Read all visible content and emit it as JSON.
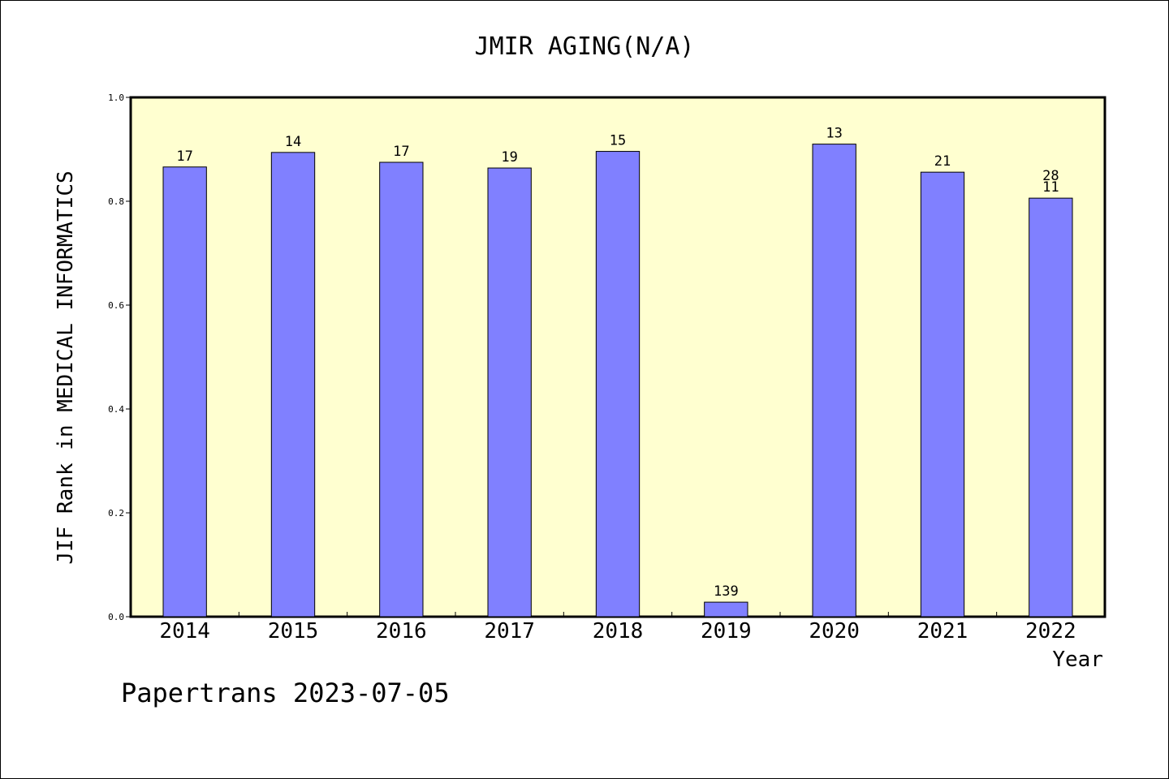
{
  "chart_data": {
    "type": "bar",
    "title": "JMIR AGING(N/A)",
    "xlabel": "Year",
    "ylabel": "JIF Rank in MEDICAL INFORMATICS",
    "ylim": [
      0,
      1.0
    ],
    "yticks": [
      "0.0",
      "0.2",
      "0.4",
      "0.6",
      "0.8",
      "1.0"
    ],
    "ytick_values": [
      0,
      0.2,
      0.4,
      0.6,
      0.8,
      1.0
    ],
    "categories": [
      "2014",
      "2015",
      "2016",
      "2017",
      "2018",
      "2019",
      "2020",
      "2021",
      "2022"
    ],
    "values": [
      0.866,
      0.894,
      0.875,
      0.864,
      0.896,
      0.028,
      0.91,
      0.856,
      0.806
    ],
    "bar_labels": [
      [
        "17"
      ],
      [
        "14"
      ],
      [
        "17"
      ],
      [
        "19"
      ],
      [
        "15"
      ],
      [
        "139"
      ],
      [
        "13"
      ],
      [
        "21"
      ],
      [
        "28",
        "11"
      ]
    ],
    "grid": false,
    "legend": "none",
    "colors": {
      "plot_background": "#ffffd0",
      "bar_fill": "#8080ff",
      "bar_stroke": "#000000"
    }
  },
  "footer": {
    "text": "Papertrans 2023-07-05"
  }
}
